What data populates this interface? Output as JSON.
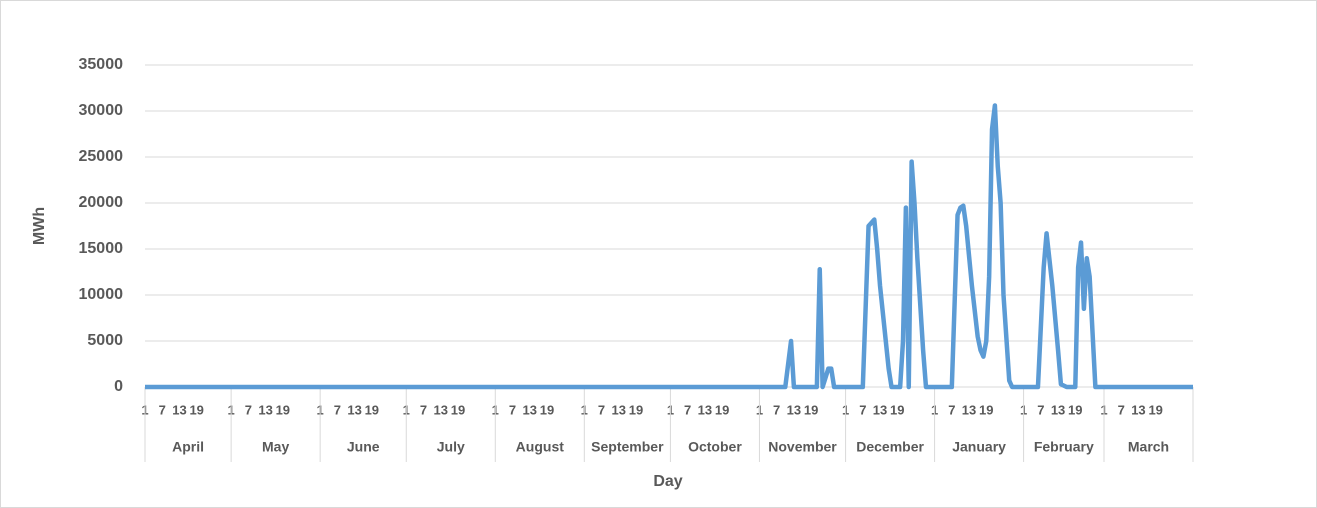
{
  "chart_data": {
    "type": "line",
    "x_label": "Day",
    "y_label": "MWh",
    "color": "#5b9bd5",
    "x": [
      0,
      223,
      225,
      226,
      234,
      235,
      236,
      238,
      239,
      240,
      250,
      252,
      254,
      255,
      256,
      258,
      259,
      260,
      263,
      264,
      265,
      266,
      267,
      268,
      269,
      271,
      272,
      281,
      283,
      284,
      285,
      286,
      288,
      290,
      291,
      292,
      293,
      294,
      295,
      296,
      297,
      298,
      299,
      301,
      302,
      311,
      313,
      314,
      316,
      318,
      319,
      321,
      324,
      325,
      326,
      327,
      328,
      329,
      331,
      365
    ],
    "values": [
      0,
      0,
      5000,
      0,
      0,
      12800,
      0,
      2000,
      2000,
      0,
      0,
      17500,
      18200,
      15000,
      11000,
      5000,
      2000,
      0,
      0,
      5000,
      19500,
      0,
      24500,
      20000,
      14000,
      4000,
      0,
      0,
      18700,
      19500,
      19700,
      17500,
      11000,
      5500,
      4000,
      3300,
      5000,
      12000,
      28000,
      30600,
      24000,
      20000,
      10000,
      700,
      0,
      0,
      13000,
      16700,
      11000,
      4000,
      300,
      0,
      0,
      13000,
      15700,
      8500,
      14000,
      12000,
      0,
      0
    ],
    "xlim": [
      0,
      365
    ],
    "xticks": [
      {
        "value": 0,
        "label": "1"
      },
      {
        "value": 6,
        "label": "7"
      },
      {
        "value": 12,
        "label": "13"
      },
      {
        "value": 18,
        "label": "19"
      },
      {
        "value": 30,
        "label": "1"
      },
      {
        "value": 36,
        "label": "7"
      },
      {
        "value": 42,
        "label": "13"
      },
      {
        "value": 48,
        "label": "19"
      },
      {
        "value": 61,
        "label": "1"
      },
      {
        "value": 67,
        "label": "7"
      },
      {
        "value": 73,
        "label": "13"
      },
      {
        "value": 79,
        "label": "19"
      },
      {
        "value": 91,
        "label": "1"
      },
      {
        "value": 97,
        "label": "7"
      },
      {
        "value": 103,
        "label": "13"
      },
      {
        "value": 109,
        "label": "19"
      },
      {
        "value": 122,
        "label": "1"
      },
      {
        "value": 128,
        "label": "7"
      },
      {
        "value": 134,
        "label": "13"
      },
      {
        "value": 140,
        "label": "19"
      },
      {
        "value": 153,
        "label": "1"
      },
      {
        "value": 159,
        "label": "7"
      },
      {
        "value": 165,
        "label": "13"
      },
      {
        "value": 171,
        "label": "19"
      },
      {
        "value": 183,
        "label": "1"
      },
      {
        "value": 189,
        "label": "7"
      },
      {
        "value": 195,
        "label": "13"
      },
      {
        "value": 201,
        "label": "19"
      },
      {
        "value": 214,
        "label": "1"
      },
      {
        "value": 220,
        "label": "7"
      },
      {
        "value": 226,
        "label": "13"
      },
      {
        "value": 232,
        "label": "19"
      },
      {
        "value": 244,
        "label": "1"
      },
      {
        "value": 250,
        "label": "7"
      },
      {
        "value": 256,
        "label": "13"
      },
      {
        "value": 262,
        "label": "19"
      },
      {
        "value": 275,
        "label": "1"
      },
      {
        "value": 281,
        "label": "7"
      },
      {
        "value": 287,
        "label": "13"
      },
      {
        "value": 293,
        "label": "19"
      },
      {
        "value": 306,
        "label": "1"
      },
      {
        "value": 312,
        "label": "7"
      },
      {
        "value": 318,
        "label": "13"
      },
      {
        "value": 324,
        "label": "19"
      },
      {
        "value": 334,
        "label": "1"
      },
      {
        "value": 340,
        "label": "7"
      },
      {
        "value": 346,
        "label": "13"
      },
      {
        "value": 352,
        "label": "19"
      }
    ],
    "x_groups": [
      {
        "label": "April",
        "start": 0,
        "end": 30
      },
      {
        "label": "May",
        "start": 30,
        "end": 61
      },
      {
        "label": "June",
        "start": 61,
        "end": 91
      },
      {
        "label": "July",
        "start": 91,
        "end": 122
      },
      {
        "label": "August",
        "start": 122,
        "end": 153
      },
      {
        "label": "September",
        "start": 153,
        "end": 183
      },
      {
        "label": "October",
        "start": 183,
        "end": 214
      },
      {
        "label": "November",
        "start": 214,
        "end": 244
      },
      {
        "label": "December",
        "start": 244,
        "end": 275
      },
      {
        "label": "January",
        "start": 275,
        "end": 306
      },
      {
        "label": "February",
        "start": 306,
        "end": 334
      },
      {
        "label": "March",
        "start": 334,
        "end": 365
      }
    ],
    "ylim": [
      0,
      35000
    ],
    "yticks": [
      0,
      5000,
      10000,
      15000,
      20000,
      25000,
      30000,
      35000
    ],
    "grid": true
  }
}
